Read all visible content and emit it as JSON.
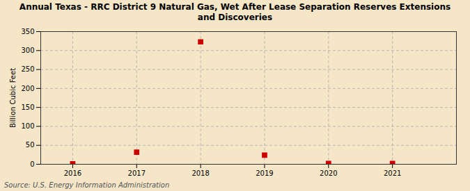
{
  "chart_data": {
    "type": "scatter",
    "title": "Annual Texas - RRC District 9 Natural Gas, Wet After Lease Separation Reserves Extensions\nand Discoveries",
    "ylabel": "Billion Cubic Feet",
    "source": "Source: U.S. Energy Information Administration",
    "x": [
      2016,
      2017,
      2018,
      2019,
      2020,
      2021
    ],
    "values": [
      1,
      32,
      323,
      24,
      2,
      2
    ],
    "xlim": [
      2015.5,
      2022.0
    ],
    "xticks": [
      2016,
      2017,
      2018,
      2019,
      2020,
      2021
    ],
    "ylim": [
      0,
      350
    ],
    "yticks": [
      0,
      50,
      100,
      150,
      200,
      250,
      300,
      350
    ],
    "color": "#cc0000",
    "marker": "square",
    "grid": true
  }
}
